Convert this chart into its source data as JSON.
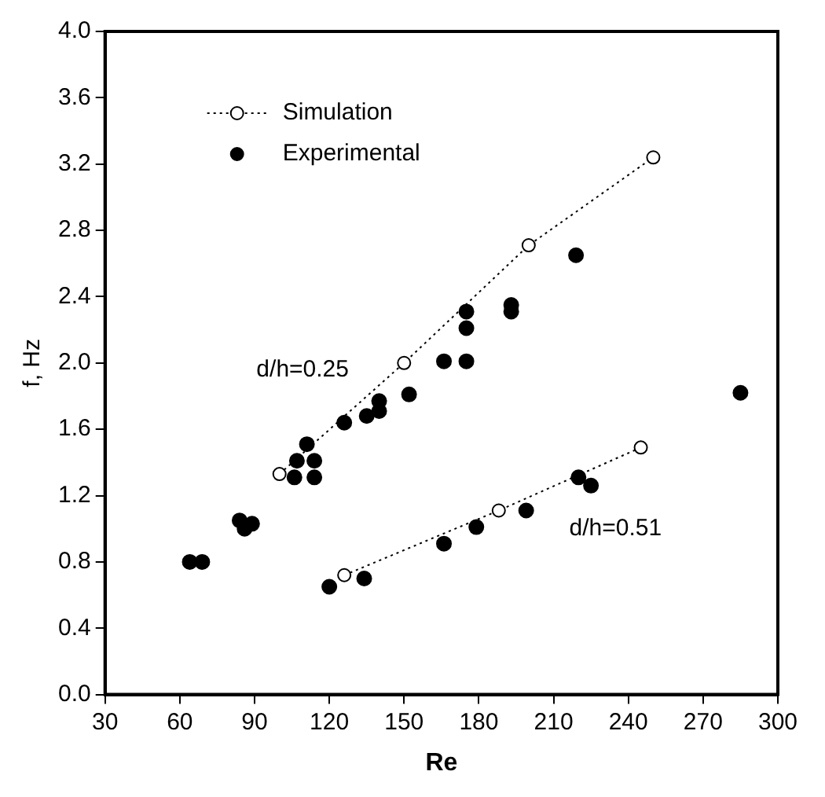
{
  "chart_data": {
    "type": "scatter",
    "xlabel": "Re",
    "ylabel": "f, Hz",
    "xlim": [
      30,
      300
    ],
    "xticks": [
      30,
      60,
      90,
      120,
      150,
      180,
      210,
      240,
      270,
      300
    ],
    "ylim": [
      0,
      4.0
    ],
    "yticks": [
      {
        "value": 0,
        "label": "0.0"
      },
      {
        "value": 0.4,
        "label": "0.4"
      },
      {
        "value": 0.8,
        "label": "0.8"
      },
      {
        "value": 1.2,
        "label": "1.2"
      },
      {
        "value": 1.6,
        "label": "1.6"
      },
      {
        "value": 2.0,
        "label": "2.0"
      },
      {
        "value": 2.4,
        "label": "2.4"
      },
      {
        "value": 2.8,
        "label": "2.8"
      },
      {
        "value": 3.2,
        "label": "3.2"
      },
      {
        "value": 3.6,
        "label": "3.6"
      },
      {
        "value": 4.0,
        "label": "4.0"
      }
    ],
    "grid": false,
    "legend": "top left",
    "annotations": [
      "d/h=0.25",
      "d/h=0.51"
    ],
    "series": [
      {
        "name": "Simulation",
        "type": "line",
        "color": "#000000",
        "marker": "circle",
        "line_style": "dotted",
        "x": [
          100,
          150,
          200,
          250
        ],
        "values": [
          1.33,
          2.0,
          2.71,
          3.24
        ]
      },
      {
        "type": "line",
        "color": "#000000",
        "marker": "circle",
        "line_style": "dotted",
        "x": [
          126,
          188,
          245
        ],
        "values": [
          0.72,
          1.11,
          1.49
        ]
      },
      {
        "name": "Experimental",
        "color": "#000000",
        "marker": "circle",
        "x": [
          64,
          69,
          84,
          86,
          89,
          106,
          107,
          111,
          114,
          114,
          126,
          135,
          140,
          140,
          152,
          166,
          175,
          175,
          175,
          193,
          193,
          219,
          285,
          120,
          134,
          166,
          179,
          199,
          220,
          225
        ],
        "values": [
          0.8,
          0.8,
          1.05,
          1.0,
          1.03,
          1.31,
          1.41,
          1.51,
          1.41,
          1.31,
          1.64,
          1.68,
          1.77,
          1.71,
          1.81,
          2.01,
          2.31,
          2.21,
          2.01,
          2.35,
          2.31,
          2.65,
          1.82,
          0.65,
          0.7,
          0.91,
          1.01,
          1.11,
          1.31,
          1.26
        ]
      }
    ]
  }
}
